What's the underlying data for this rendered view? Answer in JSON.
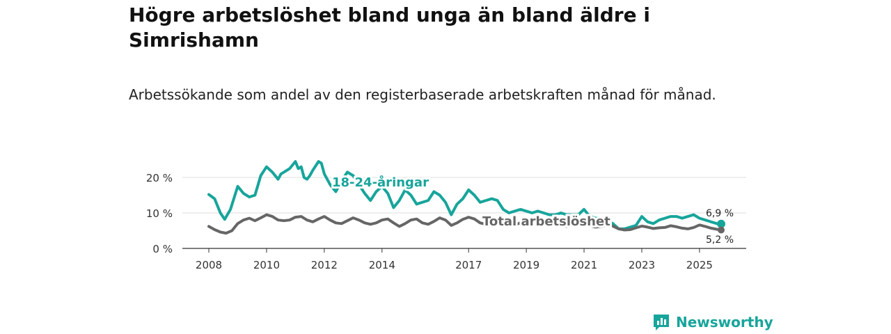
{
  "title": "Högre arbetslöshet bland unga än bland äldre i Simrishamn",
  "subtitle": "Arbetssökande som andel av den registerbaserade arbetskraften månad för månad.",
  "brand": {
    "name": "Newsworthy",
    "color": "#17a59b"
  },
  "chart_data": {
    "type": "line",
    "x_unit": "year (decimal)",
    "xlim": [
      2008,
      2025.75
    ],
    "ylim": [
      0,
      24
    ],
    "y_ticks": [
      0,
      10,
      20
    ],
    "y_tick_labels": [
      "0 %",
      "10 %",
      "20 %"
    ],
    "x_ticks": [
      2008,
      2010,
      2012,
      2014,
      2017,
      2019,
      2021,
      2023,
      2025
    ],
    "x_tick_labels": [
      "2008",
      "2010",
      "2012",
      "2014",
      "2017",
      "2019",
      "2021",
      "2023",
      "2025"
    ],
    "grid": true,
    "series": [
      {
        "name": "18-24-åringar",
        "color": "#17a59b",
        "end_label": "6,9 %",
        "x": [
          2008.0,
          2008.2,
          2008.4,
          2008.55,
          2008.75,
          2009.0,
          2009.2,
          2009.4,
          2009.6,
          2009.8,
          2010.0,
          2010.2,
          2010.4,
          2010.5,
          2010.6,
          2010.8,
          2011.0,
          2011.1,
          2011.2,
          2011.3,
          2011.4,
          2011.5,
          2011.6,
          2011.8,
          2011.9,
          2012.0,
          2012.2,
          2012.4,
          2012.6,
          2012.8,
          2013.0,
          2013.2,
          2013.4,
          2013.6,
          2013.8,
          2014.0,
          2014.2,
          2014.4,
          2014.6,
          2014.8,
          2015.0,
          2015.2,
          2015.4,
          2015.6,
          2015.8,
          2016.0,
          2016.2,
          2016.4,
          2016.6,
          2016.8,
          2017.0,
          2017.2,
          2017.4,
          2017.6,
          2017.8,
          2018.0,
          2018.2,
          2018.4,
          2018.6,
          2018.8,
          2019.0,
          2019.2,
          2019.4,
          2019.6,
          2019.8,
          2020.0,
          2020.2,
          2020.4,
          2020.6,
          2020.8,
          2021.0,
          2021.2,
          2021.4,
          2021.6,
          2021.8,
          2022.0,
          2022.2,
          2022.4,
          2022.6,
          2022.8,
          2023.0,
          2023.2,
          2023.4,
          2023.6,
          2023.8,
          2024.0,
          2024.2,
          2024.4,
          2024.6,
          2024.8,
          2025.0,
          2025.2,
          2025.4,
          2025.6,
          2025.75
        ],
        "values": [
          15.2,
          14.0,
          10.0,
          8.2,
          11.0,
          17.5,
          15.5,
          14.5,
          15.0,
          20.5,
          23.0,
          21.5,
          19.5,
          21.0,
          21.5,
          22.5,
          24.5,
          22.5,
          23.0,
          20.0,
          19.5,
          20.5,
          22.0,
          24.5,
          24.0,
          21.0,
          18.0,
          16.0,
          19.0,
          21.5,
          20.5,
          18.0,
          15.5,
          13.5,
          16.0,
          17.5,
          15.5,
          11.5,
          13.5,
          16.5,
          15.0,
          12.5,
          13.0,
          13.5,
          16.0,
          15.0,
          13.0,
          9.5,
          12.5,
          14.0,
          16.5,
          15.0,
          13.0,
          13.5,
          14.0,
          13.5,
          11.0,
          10.0,
          10.5,
          11.0,
          10.5,
          10.0,
          10.5,
          10.0,
          9.5,
          9.5,
          10.0,
          9.5,
          9.5,
          9.5,
          11.0,
          9.0,
          8.5,
          8.5,
          8.0,
          7.0,
          5.5,
          5.5,
          6.0,
          6.5,
          9.0,
          7.5,
          7.0,
          8.0,
          8.5,
          9.0,
          9.0,
          8.5,
          9.0,
          9.5,
          8.5,
          8.0,
          7.5,
          7.0,
          6.9
        ]
      },
      {
        "name": "Total arbetslöshet",
        "color": "#666666",
        "end_label": "5,2 %",
        "x": [
          2008.0,
          2008.2,
          2008.4,
          2008.6,
          2008.8,
          2009.0,
          2009.2,
          2009.4,
          2009.6,
          2009.8,
          2010.0,
          2010.2,
          2010.4,
          2010.6,
          2010.8,
          2011.0,
          2011.2,
          2011.4,
          2011.6,
          2011.8,
          2012.0,
          2012.2,
          2012.4,
          2012.6,
          2012.8,
          2013.0,
          2013.2,
          2013.4,
          2013.6,
          2013.8,
          2014.0,
          2014.2,
          2014.4,
          2014.6,
          2014.8,
          2015.0,
          2015.2,
          2015.4,
          2015.6,
          2015.8,
          2016.0,
          2016.2,
          2016.4,
          2016.6,
          2016.8,
          2017.0,
          2017.2,
          2017.4,
          2017.6,
          2017.8,
          2018.0,
          2018.2,
          2018.4,
          2018.6,
          2018.8,
          2019.0,
          2019.2,
          2019.4,
          2019.6,
          2019.8,
          2020.0,
          2020.2,
          2020.4,
          2020.6,
          2020.8,
          2021.0,
          2021.2,
          2021.4,
          2021.6,
          2021.8,
          2022.0,
          2022.2,
          2022.4,
          2022.6,
          2022.8,
          2023.0,
          2023.2,
          2023.4,
          2023.6,
          2023.8,
          2024.0,
          2024.2,
          2024.4,
          2024.6,
          2024.8,
          2025.0,
          2025.2,
          2025.4,
          2025.6,
          2025.75
        ],
        "values": [
          6.2,
          5.3,
          4.6,
          4.3,
          5.0,
          7.0,
          8.0,
          8.5,
          7.8,
          8.6,
          9.5,
          9.0,
          8.0,
          7.8,
          8.0,
          8.8,
          9.0,
          8.0,
          7.5,
          8.3,
          9.0,
          8.0,
          7.2,
          7.0,
          7.8,
          8.6,
          8.0,
          7.2,
          6.8,
          7.2,
          8.0,
          8.3,
          7.2,
          6.2,
          7.0,
          8.0,
          8.3,
          7.2,
          6.8,
          7.6,
          8.6,
          8.0,
          6.5,
          7.2,
          8.2,
          8.8,
          8.3,
          7.2,
          6.8,
          7.3,
          8.2,
          7.8,
          6.6,
          6.6,
          7.2,
          7.6,
          7.0,
          6.4,
          6.6,
          7.2,
          7.0,
          6.4,
          6.2,
          6.8,
          7.3,
          7.0,
          6.4,
          6.0,
          6.2,
          6.6,
          6.3,
          5.5,
          5.2,
          5.3,
          5.8,
          6.3,
          6.0,
          5.6,
          5.8,
          5.9,
          6.4,
          6.1,
          5.7,
          5.5,
          5.9,
          6.6,
          6.2,
          5.7,
          5.4,
          5.2
        ]
      }
    ]
  }
}
